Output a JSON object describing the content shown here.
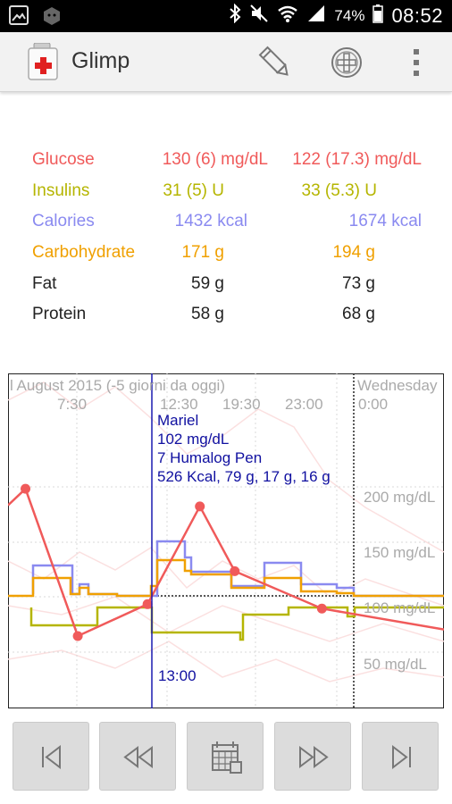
{
  "status_bar": {
    "battery": "74%",
    "time": "08:52"
  },
  "app_bar": {
    "title": "Glimp",
    "icons": [
      "app-logo-icon",
      "pencil-icon",
      "add-circle-icon",
      "overflow-menu-icon"
    ]
  },
  "colors": {
    "glucose": "#f05a5a",
    "insulins": "#b5b500",
    "calories": "#8a8af0",
    "carbohydrate": "#f0a000",
    "text": "#222222",
    "chart_text": "#1010a0"
  },
  "stats": [
    {
      "label": "Glucose",
      "v1": "130 (6) mg/dL",
      "v2": "122 (17.3) mg/dL"
    },
    {
      "label": "Insulins",
      "v1": "31 (5) U",
      "v2": "33 (5.3) U"
    },
    {
      "label": "Calories",
      "v1": "1432 kcal",
      "v2": "1674 kcal"
    },
    {
      "label": "Carbohydrate",
      "v1": "171 g",
      "v2": "194 g"
    },
    {
      "label": "Fat",
      "v1": "59 g",
      "v2": "73 g"
    },
    {
      "label": "Protein",
      "v1": "58 g",
      "v2": "68 g"
    }
  ],
  "chart": {
    "date_label": "l August 2015 (-5 giorni da oggi)",
    "next_day_label": "Wednesday",
    "time_ticks": [
      "7:30",
      "12:30",
      "19:30",
      "23:00",
      "0:00"
    ],
    "y_ticks": [
      "200 mg/dL",
      "150 mg/dL",
      "100 mg/dL",
      "50 mg/dL"
    ],
    "tooltip": [
      "Mariel",
      "102 mg/dL",
      "7 Humalog Pen",
      "526 Kcal, 79 g, 17 g, 16 g"
    ],
    "cursor_time": "13:00"
  },
  "chart_data": {
    "type": "line",
    "ylim": [
      20,
      290
    ],
    "ylabel": "mg/dL",
    "glucose_readings": {
      "x": [
        0.04,
        0.16,
        0.32,
        0.44,
        0.52,
        0.72,
        1.0
      ],
      "values": [
        208,
        74,
        103,
        192,
        133,
        99,
        80
      ]
    }
  },
  "nav_buttons": [
    {
      "name": "first-button",
      "icon": "skip-first-icon"
    },
    {
      "name": "rewind-button",
      "icon": "rewind-icon"
    },
    {
      "name": "calendar-button",
      "icon": "calendar-icon"
    },
    {
      "name": "forward-button",
      "icon": "fast-forward-icon"
    },
    {
      "name": "last-button",
      "icon": "skip-last-icon"
    }
  ]
}
